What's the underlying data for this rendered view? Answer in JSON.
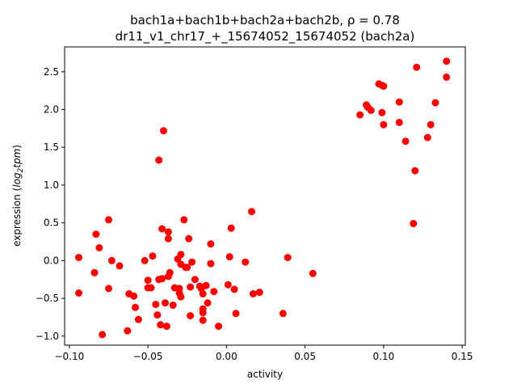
{
  "chart_data": {
    "type": "scatter",
    "title_line1": "bach1a+bach1b+bach2a+bach2b, ",
    "title_rho": "ρ = 0.78",
    "title_line2": "dr11_v1_chr17_+_15674052_15674052 (bach2a)",
    "xlabel": "activity",
    "ylabel_prefix": "expression (",
    "ylabel_log": "log",
    "ylabel_sub": "2",
    "ylabel_tpm": "tpm",
    "ylabel_suffix": ")",
    "xlim": [
      -0.103,
      0.152
    ],
    "ylim": [
      -1.12,
      2.83
    ],
    "x_ticks": [
      -0.1,
      -0.05,
      0.0,
      0.05,
      0.1,
      0.15
    ],
    "x_tick_labels": [
      "−0.10",
      "−0.05",
      "0.00",
      "0.05",
      "0.10",
      "0.15"
    ],
    "y_ticks": [
      -1.0,
      -0.5,
      0.0,
      0.5,
      1.0,
      1.5,
      2.0,
      2.5
    ],
    "y_tick_labels": [
      "−1.0",
      "−0.5",
      "0.0",
      "0.5",
      "1.0",
      "1.5",
      "2.0",
      "2.5"
    ],
    "marker_color": "#ff0000",
    "grid": false,
    "points": [
      [
        -0.094,
        0.04
      ],
      [
        -0.094,
        -0.43
      ],
      [
        -0.084,
        -0.16
      ],
      [
        -0.083,
        0.35
      ],
      [
        -0.081,
        0.17
      ],
      [
        -0.079,
        -0.98
      ],
      [
        -0.075,
        0.54
      ],
      [
        -0.075,
        -0.37
      ],
      [
        -0.073,
        -0.0
      ],
      [
        -0.068,
        -0.07
      ],
      [
        -0.063,
        -0.93
      ],
      [
        -0.062,
        -0.44
      ],
      [
        -0.059,
        -0.47
      ],
      [
        -0.058,
        -0.62
      ],
      [
        -0.056,
        -0.78
      ],
      [
        -0.052,
        -0.0
      ],
      [
        -0.05,
        -0.26
      ],
      [
        -0.05,
        -0.36
      ],
      [
        -0.048,
        -0.36
      ],
      [
        -0.047,
        0.06
      ],
      [
        -0.045,
        -0.58
      ],
      [
        -0.044,
        -0.72
      ],
      [
        -0.043,
        1.33
      ],
      [
        -0.043,
        -0.25
      ],
      [
        -0.042,
        -0.85
      ],
      [
        -0.041,
        0.42
      ],
      [
        -0.041,
        -0.24
      ],
      [
        -0.04,
        1.72
      ],
      [
        -0.039,
        -0.56
      ],
      [
        -0.038,
        -0.87
      ],
      [
        -0.037,
        0.38
      ],
      [
        -0.037,
        0.29
      ],
      [
        -0.037,
        -0.21
      ],
      [
        -0.036,
        -0.16
      ],
      [
        -0.034,
        -0.59
      ],
      [
        -0.033,
        -0.36
      ],
      [
        -0.031,
        0.02
      ],
      [
        -0.03,
        -0.37
      ],
      [
        -0.03,
        -0.43
      ],
      [
        -0.029,
        -0.05
      ],
      [
        -0.029,
        0.08
      ],
      [
        -0.029,
        -0.48
      ],
      [
        -0.027,
        0.54
      ],
      [
        -0.026,
        -0.09
      ],
      [
        -0.025,
        -0.09
      ],
      [
        -0.024,
        0.29
      ],
      [
        -0.023,
        -0.35
      ],
      [
        -0.023,
        -0.73
      ],
      [
        -0.022,
        -0.02
      ],
      [
        -0.02,
        -0.25
      ],
      [
        -0.017,
        -0.34
      ],
      [
        -0.016,
        -0.37
      ],
      [
        -0.015,
        -0.44
      ],
      [
        -0.015,
        -0.64
      ],
      [
        -0.015,
        -0.69
      ],
      [
        -0.015,
        -0.79
      ],
      [
        -0.013,
        -0.33
      ],
      [
        -0.012,
        -0.56
      ],
      [
        -0.01,
        0.22
      ],
      [
        -0.01,
        -0.04
      ],
      [
        -0.008,
        -0.41
      ],
      [
        -0.005,
        -0.87
      ],
      [
        0.001,
        -0.32
      ],
      [
        0.002,
        0.05
      ],
      [
        0.003,
        0.43
      ],
      [
        0.005,
        -0.38
      ],
      [
        0.006,
        -0.7
      ],
      [
        0.012,
        -0.02
      ],
      [
        0.016,
        0.65
      ],
      [
        0.017,
        -0.44
      ],
      [
        0.021,
        -0.42
      ],
      [
        0.036,
        -0.7
      ],
      [
        0.039,
        0.04
      ],
      [
        0.055,
        -0.17
      ],
      [
        0.085,
        1.93
      ],
      [
        0.089,
        2.06
      ],
      [
        0.09,
        2.03
      ],
      [
        0.092,
        1.99
      ],
      [
        0.097,
        2.34
      ],
      [
        0.099,
        2.32
      ],
      [
        0.099,
        1.96
      ],
      [
        0.1,
        1.8
      ],
      [
        0.1,
        2.31
      ],
      [
        0.11,
        1.83
      ],
      [
        0.11,
        2.1
      ],
      [
        0.114,
        1.58
      ],
      [
        0.119,
        0.49
      ],
      [
        0.12,
        1.19
      ],
      [
        0.121,
        2.56
      ],
      [
        0.128,
        1.63
      ],
      [
        0.13,
        1.8
      ],
      [
        0.133,
        2.09
      ],
      [
        0.14,
        2.43
      ],
      [
        0.14,
        2.64
      ]
    ]
  }
}
